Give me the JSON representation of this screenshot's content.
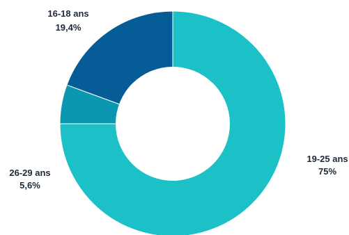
{
  "chart_data": {
    "type": "pie",
    "variant": "donut",
    "title": "",
    "slices": [
      {
        "label": "19-25 ans",
        "value_label": "75%",
        "value": 75,
        "color": "#1cc1c7"
      },
      {
        "label": "26-29 ans",
        "value_label": "5,6%",
        "value": 5.6,
        "color": "#0b97b0"
      },
      {
        "label": "16-18 ans",
        "value_label": "19,4%",
        "value": 19.4,
        "color": "#065c96"
      }
    ],
    "legend": "none"
  }
}
